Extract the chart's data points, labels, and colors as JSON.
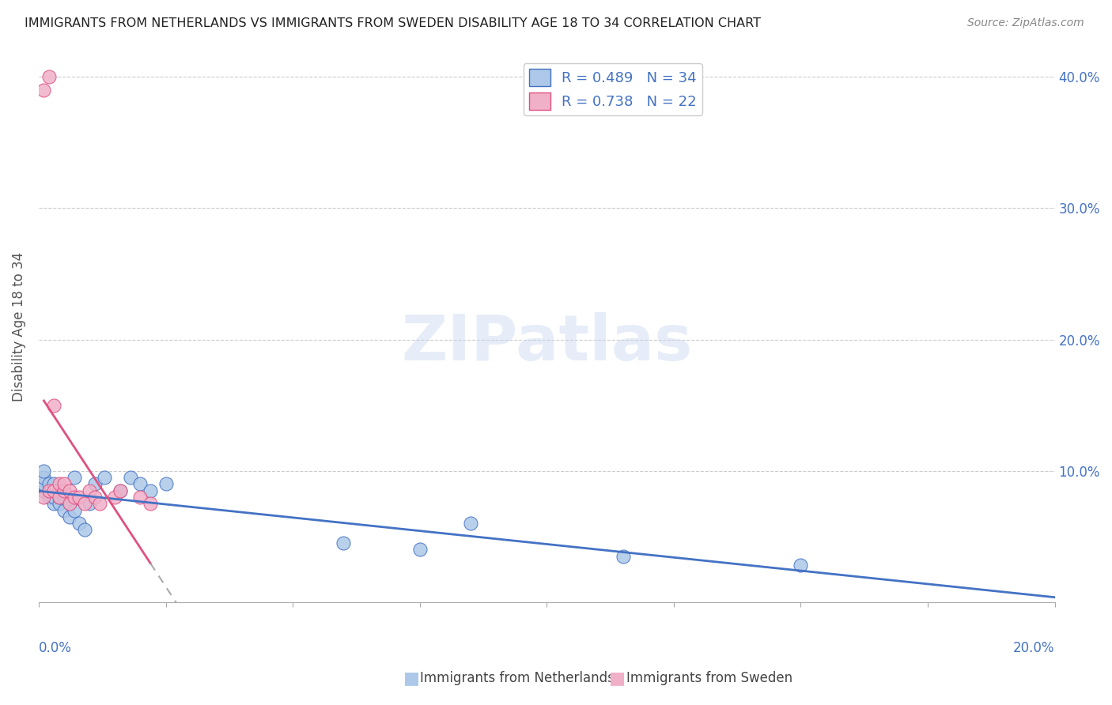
{
  "title": "IMMIGRANTS FROM NETHERLANDS VS IMMIGRANTS FROM SWEDEN DISABILITY AGE 18 TO 34 CORRELATION CHART",
  "source": "Source: ZipAtlas.com",
  "ylabel": "Disability Age 18 to 34",
  "xmin": 0.0,
  "xmax": 0.2,
  "ymin": 0.0,
  "ymax": 0.42,
  "netherlands_R": 0.489,
  "netherlands_N": 34,
  "sweden_R": 0.738,
  "sweden_N": 22,
  "netherlands_color": "#adc8e8",
  "sweden_color": "#f0b0c8",
  "netherlands_line_color": "#4472c4",
  "sweden_line_color": "#e05080",
  "watermark": "ZIPatlas",
  "background_color": "#ffffff",
  "netherlands_x": [
    0.001,
    0.001,
    0.001,
    0.001,
    0.002,
    0.002,
    0.002,
    0.003,
    0.003,
    0.003,
    0.004,
    0.004,
    0.004,
    0.005,
    0.005,
    0.006,
    0.006,
    0.007,
    0.007,
    0.008,
    0.009,
    0.01,
    0.011,
    0.013,
    0.016,
    0.018,
    0.02,
    0.022,
    0.025,
    0.06,
    0.075,
    0.085,
    0.115,
    0.15
  ],
  "netherlands_y": [
    0.085,
    0.09,
    0.095,
    0.1,
    0.08,
    0.085,
    0.09,
    0.075,
    0.08,
    0.09,
    0.075,
    0.08,
    0.085,
    0.07,
    0.08,
    0.065,
    0.075,
    0.07,
    0.095,
    0.06,
    0.055,
    0.075,
    0.09,
    0.095,
    0.085,
    0.095,
    0.09,
    0.085,
    0.09,
    0.045,
    0.04,
    0.06,
    0.035,
    0.028
  ],
  "sweden_x": [
    0.001,
    0.001,
    0.002,
    0.002,
    0.003,
    0.003,
    0.004,
    0.004,
    0.005,
    0.005,
    0.006,
    0.006,
    0.007,
    0.008,
    0.009,
    0.01,
    0.011,
    0.012,
    0.015,
    0.016,
    0.02,
    0.022
  ],
  "sweden_y": [
    0.08,
    0.39,
    0.085,
    0.4,
    0.15,
    0.085,
    0.08,
    0.09,
    0.085,
    0.09,
    0.075,
    0.085,
    0.08,
    0.08,
    0.075,
    0.085,
    0.08,
    0.075,
    0.08,
    0.085,
    0.08,
    0.075
  ]
}
